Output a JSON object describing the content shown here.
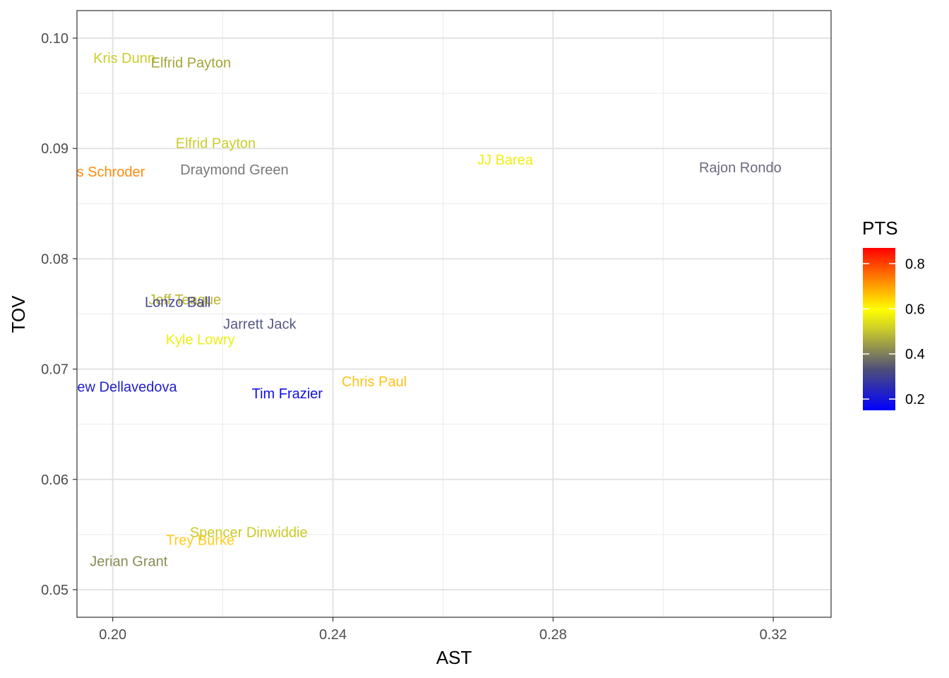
{
  "chart_data": {
    "type": "scatter",
    "title": "",
    "xlabel": "AST",
    "ylabel": "TOV",
    "xlim": [
      0.1935,
      0.3305
    ],
    "ylim": [
      0.0475,
      0.1025
    ],
    "xticks": [
      0.2,
      0.24,
      0.28,
      0.32
    ],
    "xtick_labels": [
      "0.20",
      "0.24",
      "0.28",
      "0.32"
    ],
    "yticks": [
      0.05,
      0.06,
      0.07,
      0.08,
      0.09,
      0.1
    ],
    "ytick_labels": [
      "0.05",
      "0.06",
      "0.07",
      "0.08",
      "0.09",
      "0.10"
    ],
    "grid": true,
    "mark": "text-label",
    "color_variable": "PTS",
    "colorbar": {
      "title": "PTS",
      "range": [
        0.15,
        0.87
      ],
      "ticks": [
        0.2,
        0.4,
        0.6,
        0.8
      ],
      "tick_labels": [
        "0.2",
        "0.4",
        "0.6",
        "0.8"
      ],
      "low_color": "#0000ff",
      "mid_color": "#ffff00",
      "high_color": "#ff0000",
      "position": "right"
    },
    "points": [
      {
        "label": "Kris Dunn",
        "x": 0.2021,
        "y": 0.0982,
        "pts": 0.44,
        "color": "#cccc2a"
      },
      {
        "label": "Elfrid Payton",
        "x": 0.2142,
        "y": 0.0978,
        "pts": 0.38,
        "color": "#a5a538"
      },
      {
        "label": "Elfrid Payton",
        "x": 0.2187,
        "y": 0.0905,
        "pts": 0.44,
        "color": "#cccc2a"
      },
      {
        "label": "Dennis Schroder",
        "x": 0.1963,
        "y": 0.0879,
        "pts": 0.64,
        "color": "#ff8c0f"
      },
      {
        "label": "Draymond Green",
        "x": 0.2221,
        "y": 0.0881,
        "pts": 0.33,
        "color": "#797979"
      },
      {
        "label": "JJ Barea",
        "x": 0.2713,
        "y": 0.089,
        "pts": 0.5,
        "color": "#efef12"
      },
      {
        "label": "Rajon Rondo",
        "x": 0.314,
        "y": 0.0883,
        "pts": 0.3,
        "color": "#6b6b80"
      },
      {
        "label": "Jeff Teague",
        "x": 0.2131,
        "y": 0.0763,
        "pts": 0.42,
        "color": "#b8b830"
      },
      {
        "label": "Lonzo Ball",
        "x": 0.2118,
        "y": 0.0761,
        "pts": 0.24,
        "color": "#43438f"
      },
      {
        "label": "Jarrett Jack",
        "x": 0.2267,
        "y": 0.0741,
        "pts": 0.27,
        "color": "#585888"
      },
      {
        "label": "Kyle Lowry",
        "x": 0.2159,
        "y": 0.0727,
        "pts": 0.5,
        "color": "#eeee12"
      },
      {
        "label": "Matthew Dellavedova",
        "x": 0.1994,
        "y": 0.0684,
        "pts": 0.19,
        "color": "#1f1fc9"
      },
      {
        "label": "Tim Frazier",
        "x": 0.2317,
        "y": 0.0678,
        "pts": 0.17,
        "color": "#0f0fe6"
      },
      {
        "label": "Chris Paul",
        "x": 0.2475,
        "y": 0.0689,
        "pts": 0.56,
        "color": "#ffc21a"
      },
      {
        "label": "Spencer Dinwiddie",
        "x": 0.2247,
        "y": 0.0552,
        "pts": 0.44,
        "color": "#caca27"
      },
      {
        "label": "Trey Burke",
        "x": 0.2159,
        "y": 0.0545,
        "pts": 0.55,
        "color": "#ffcc22"
      },
      {
        "label": "Jerian Grant",
        "x": 0.2029,
        "y": 0.0526,
        "pts": 0.37,
        "color": "#8a8a55"
      }
    ]
  }
}
